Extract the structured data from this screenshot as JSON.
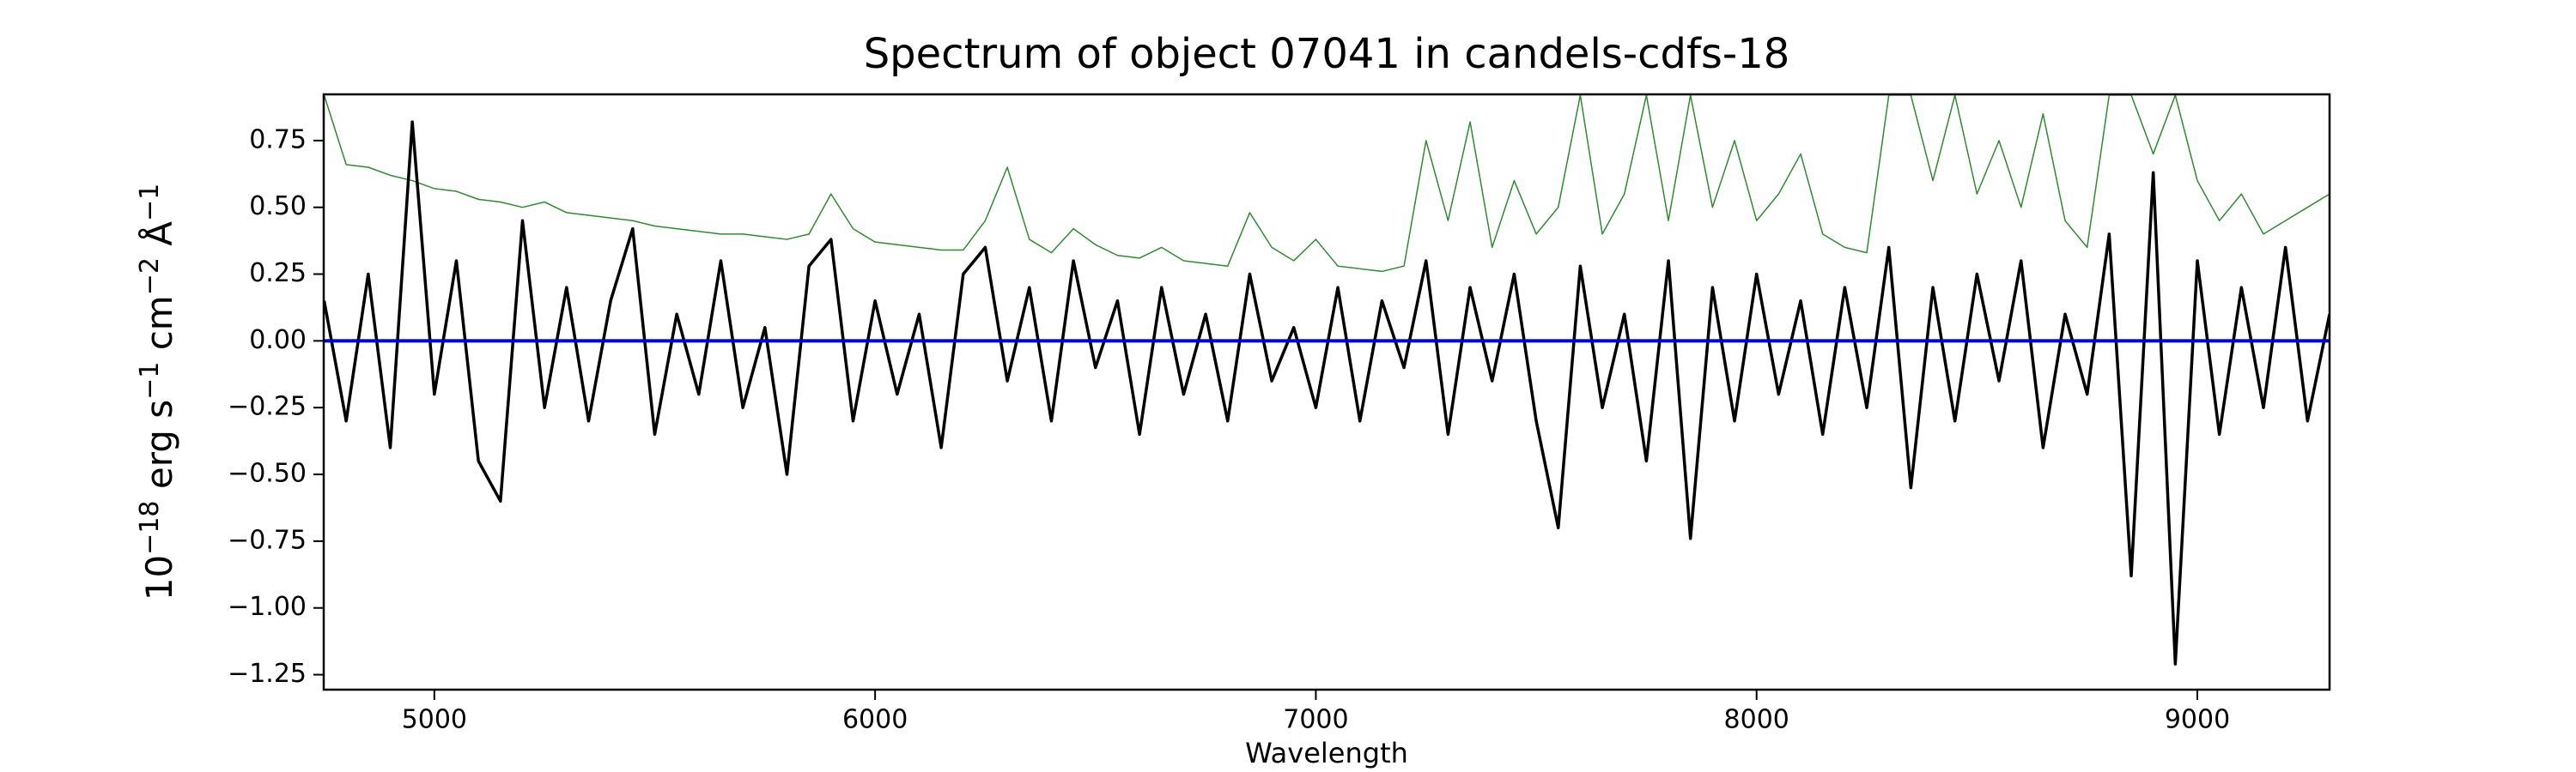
{
  "chart_data": {
    "type": "line",
    "title": "Spectrum of object 07041 in candels-cdfs-18",
    "xlabel": "Wavelength",
    "ylabel": [
      "10",
      "−18",
      " erg s",
      "−1",
      " cm",
      "−2",
      " Å",
      "−1"
    ],
    "xlim": [
      4749,
      9300
    ],
    "ylim": [
      -1.306,
      0.923
    ],
    "xticks": [
      5000,
      6000,
      7000,
      8000,
      9000
    ],
    "yticks": [
      {
        "value": 0.75,
        "label": "0.75"
      },
      {
        "value": 0.5,
        "label": "0.50"
      },
      {
        "value": 0.25,
        "label": "0.25"
      },
      {
        "value": 0,
        "label": "0.00"
      },
      {
        "value": -0.25,
        "label": "−0.25"
      },
      {
        "value": -0.5,
        "label": "−0.50"
      },
      {
        "value": -0.75,
        "label": "−0.75"
      },
      {
        "value": -1,
        "label": "−1.00"
      },
      {
        "value": -1.25,
        "label": "−1.25"
      }
    ],
    "x": [
      4750,
      4800,
      4850,
      4900,
      4950,
      5000,
      5050,
      5100,
      5150,
      5200,
      5250,
      5300,
      5350,
      5400,
      5450,
      5500,
      5550,
      5600,
      5650,
      5700,
      5750,
      5800,
      5850,
      5900,
      5950,
      6000,
      6050,
      6100,
      6150,
      6200,
      6250,
      6300,
      6350,
      6400,
      6450,
      6500,
      6550,
      6600,
      6650,
      6700,
      6750,
      6800,
      6850,
      6900,
      6950,
      7000,
      7050,
      7100,
      7150,
      7200,
      7250,
      7300,
      7350,
      7400,
      7450,
      7500,
      7550,
      7600,
      7650,
      7700,
      7750,
      7800,
      7850,
      7900,
      7950,
      8000,
      8050,
      8100,
      8150,
      8200,
      8250,
      8300,
      8350,
      8400,
      8450,
      8500,
      8550,
      8600,
      8650,
      8700,
      8750,
      8800,
      8850,
      8900,
      8950,
      9000,
      9050,
      9100,
      9150,
      9200,
      9250,
      9300
    ],
    "series": [
      {
        "color": "#2e8b2e",
        "width": 1.5,
        "values": [
          0.92,
          0.66,
          0.65,
          0.62,
          0.6,
          0.57,
          0.56,
          0.53,
          0.52,
          0.5,
          0.52,
          0.48,
          0.47,
          0.46,
          0.45,
          0.43,
          0.42,
          0.41,
          0.4,
          0.4,
          0.39,
          0.38,
          0.4,
          0.55,
          0.42,
          0.37,
          0.36,
          0.35,
          0.34,
          0.34,
          0.45,
          0.65,
          0.38,
          0.33,
          0.42,
          0.36,
          0.32,
          0.31,
          0.35,
          0.3,
          0.29,
          0.28,
          0.48,
          0.35,
          0.3,
          0.38,
          0.28,
          0.27,
          0.26,
          0.28,
          0.75,
          0.45,
          0.82,
          0.35,
          0.6,
          0.4,
          0.5,
          0.92,
          0.4,
          0.55,
          0.92,
          0.45,
          0.92,
          0.5,
          0.75,
          0.45,
          0.55,
          0.7,
          0.4,
          0.35,
          0.33,
          0.92,
          0.92,
          0.6,
          0.92,
          0.55,
          0.75,
          0.5,
          0.85,
          0.45,
          0.35,
          0.92,
          0.92,
          0.7,
          0.92,
          0.6,
          0.45,
          0.55,
          0.4,
          0.45,
          0.5,
          0.55
        ]
      },
      {
        "color": "#000000",
        "width": 3.5,
        "values": [
          0.15,
          -0.3,
          0.25,
          -0.4,
          0.82,
          -0.2,
          0.3,
          -0.45,
          -0.6,
          0.45,
          -0.25,
          0.2,
          -0.3,
          0.15,
          0.42,
          -0.35,
          0.1,
          -0.2,
          0.3,
          -0.25,
          0.05,
          -0.5,
          0.28,
          0.38,
          -0.3,
          0.15,
          -0.2,
          0.1,
          -0.4,
          0.25,
          0.35,
          -0.15,
          0.2,
          -0.3,
          0.3,
          -0.1,
          0.15,
          -0.35,
          0.2,
          -0.2,
          0.1,
          -0.3,
          0.25,
          -0.15,
          0.05,
          -0.25,
          0.2,
          -0.3,
          0.15,
          -0.1,
          0.3,
          -0.35,
          0.2,
          -0.15,
          0.25,
          -0.3,
          -0.7,
          0.28,
          -0.25,
          0.1,
          -0.45,
          0.3,
          -0.74,
          0.2,
          -0.3,
          0.25,
          -0.2,
          0.15,
          -0.35,
          0.2,
          -0.25,
          0.35,
          -0.55,
          0.2,
          -0.3,
          0.25,
          -0.15,
          0.3,
          -0.4,
          0.1,
          -0.2,
          0.4,
          -0.88,
          0.63,
          -1.21,
          0.3,
          -0.35,
          0.2,
          -0.25,
          0.35,
          -0.3,
          0.1
        ]
      },
      {
        "color": "#0000cc",
        "width": 4,
        "values": [
          0,
          0,
          0,
          0,
          0,
          0,
          0,
          0,
          0,
          0,
          0,
          0,
          0,
          0,
          0,
          0,
          0,
          0,
          0,
          0,
          0,
          0,
          0,
          0,
          0,
          0,
          0,
          0,
          0,
          0,
          0,
          0,
          0,
          0,
          0,
          0,
          0,
          0,
          0,
          0,
          0,
          0,
          0,
          0,
          0,
          0,
          0,
          0,
          0,
          0,
          0,
          0,
          0,
          0,
          0,
          0,
          0,
          0,
          0,
          0,
          0,
          0,
          0,
          0,
          0,
          0,
          0,
          0,
          0,
          0,
          0,
          0,
          0,
          0,
          0,
          0,
          0,
          0,
          0,
          0,
          0,
          0,
          0,
          0,
          0,
          0,
          0,
          0,
          0,
          0,
          0,
          0
        ]
      }
    ]
  }
}
